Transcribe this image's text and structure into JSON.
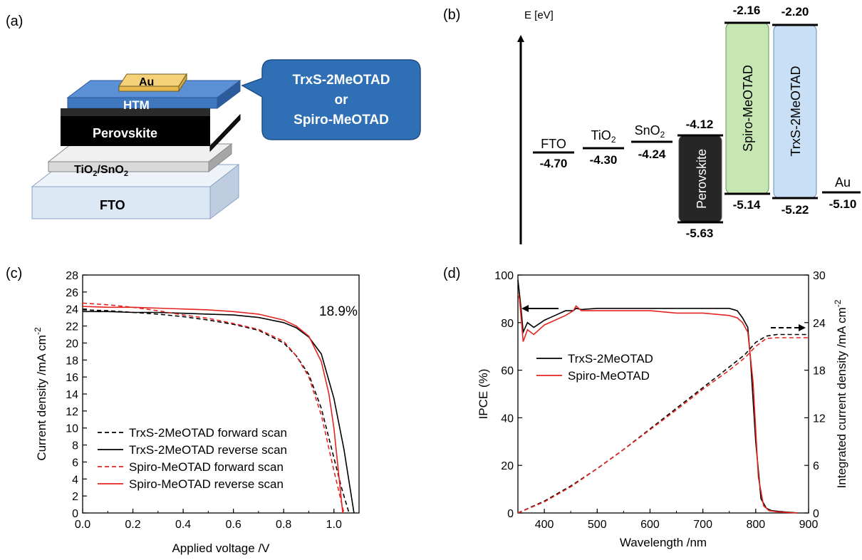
{
  "panels": {
    "a": {
      "label": "(a)",
      "layers": {
        "au": "Au",
        "htm": "HTM",
        "perovskite": "Perovskite",
        "etl_main": "TiO",
        "etl_sub": "2",
        "etl_sep": "/SnO",
        "etl_sub2": "2",
        "fto": "FTO"
      },
      "callout": {
        "line1": "TrxS-2MeOTAD",
        "line2": "or",
        "line3": "Spiro-MeOTAD"
      },
      "colors": {
        "htm": "#3f78bf",
        "au": "#f5d27a",
        "perovskite": "#000000",
        "etl": "#d9d9d9",
        "fto": "#dde8f5",
        "callout": "#2e6fb5"
      }
    },
    "b": {
      "label": "(b)",
      "axis_label": "E [eV]",
      "levels": [
        {
          "name": "FTO",
          "value": "-4.70"
        },
        {
          "name": "TiO",
          "sub": "2",
          "value": "-4.30"
        },
        {
          "name": "SnO",
          "sub": "2",
          "value": "-4.24"
        },
        {
          "name": "Au",
          "value": "-5.10"
        }
      ],
      "boxes": [
        {
          "name": "Perovskite",
          "top": "-4.12",
          "bottom": "-5.63",
          "color": "#262626"
        },
        {
          "name": "Spiro-MeOTAD",
          "top": "-2.16",
          "bottom": "-5.14",
          "color": "#c6e6b3"
        },
        {
          "name": "TrxS-2MeOTAD",
          "top": "-2.20",
          "bottom": "-5.22",
          "color": "#c9dff5"
        }
      ]
    }
  },
  "chart_data": [
    {
      "panel": "(c)",
      "type": "line",
      "xlabel": "Applied voltage /V",
      "ylabel": "Current density /mA cm",
      "ylabel_sup": "-2",
      "xlim": [
        0,
        1.1
      ],
      "ylim": [
        0,
        28
      ],
      "xticks": [
        "0.0",
        "0.2",
        "0.4",
        "0.6",
        "0.8",
        "1.0"
      ],
      "yticks": [
        "0",
        "2",
        "4",
        "6",
        "8",
        "10",
        "12",
        "14",
        "16",
        "18",
        "20",
        "22",
        "24",
        "26",
        "28"
      ],
      "annotation": "18.9%",
      "legend_position": "bottom-left",
      "series": [
        {
          "name": "TrxS-2MeOTAD forward scan",
          "color": "#000000",
          "dash": true,
          "x": [
            0,
            0.1,
            0.2,
            0.3,
            0.4,
            0.5,
            0.6,
            0.7,
            0.8,
            0.85,
            0.9,
            0.95,
            1.0,
            1.03,
            1.06
          ],
          "y": [
            23.9,
            23.8,
            23.6,
            23.4,
            23.1,
            22.7,
            22.2,
            21.5,
            20.0,
            18.5,
            16.3,
            12.3,
            6.5,
            3.0,
            0
          ]
        },
        {
          "name": "TrxS-2MeOTAD reverse scan",
          "color": "#000000",
          "dash": false,
          "x": [
            0,
            0.1,
            0.2,
            0.3,
            0.4,
            0.5,
            0.6,
            0.7,
            0.8,
            0.85,
            0.9,
            0.95,
            1.0,
            1.04,
            1.08
          ],
          "y": [
            23.7,
            23.7,
            23.6,
            23.6,
            23.5,
            23.4,
            23.3,
            23.0,
            22.4,
            21.8,
            20.7,
            18.7,
            13.5,
            7.5,
            0
          ]
        },
        {
          "name": "Spiro-MeOTAD forward scan",
          "color": "#e52421",
          "dash": true,
          "x": [
            0,
            0.1,
            0.2,
            0.3,
            0.4,
            0.5,
            0.6,
            0.7,
            0.8,
            0.85,
            0.9,
            0.95,
            1.0,
            1.04
          ],
          "y": [
            24.7,
            24.5,
            24.2,
            23.8,
            23.3,
            22.9,
            22.3,
            21.6,
            20.2,
            18.5,
            16.0,
            11.5,
            5.0,
            0
          ]
        },
        {
          "name": "Spiro-MeOTAD reverse scan",
          "color": "#e52421",
          "dash": false,
          "x": [
            0,
            0.1,
            0.2,
            0.3,
            0.4,
            0.5,
            0.6,
            0.7,
            0.8,
            0.85,
            0.9,
            0.95,
            0.98,
            1.0,
            1.035
          ],
          "y": [
            24.3,
            24.2,
            24.2,
            24.1,
            24.0,
            23.9,
            23.7,
            23.4,
            22.7,
            22.0,
            20.8,
            17.8,
            14.0,
            10.0,
            0
          ]
        }
      ]
    },
    {
      "panel": "(d)",
      "type": "line",
      "xlabel": "Wavelength /nm",
      "ylabel": "IPCE (%)",
      "ylabel_right": "Integrated current density /mA cm",
      "ylabel_right_sup": "-2",
      "xlim": [
        350,
        900
      ],
      "ylim": [
        0,
        100
      ],
      "ylim_right": [
        0,
        30
      ],
      "xticks": [
        "400",
        "500",
        "600",
        "700",
        "800",
        "900"
      ],
      "yticks": [
        "0",
        "20",
        "40",
        "60",
        "80",
        "100"
      ],
      "yticks_right": [
        "0",
        "6",
        "12",
        "18",
        "24",
        "30"
      ],
      "legend_position": "upper-left",
      "series": [
        {
          "name": "TrxS-2MeOTAD",
          "color": "#000000",
          "axis": "left",
          "x": [
            350,
            355,
            360,
            368,
            380,
            400,
            420,
            440,
            455,
            460,
            470,
            500,
            550,
            600,
            650,
            700,
            750,
            765,
            775,
            785,
            790,
            800,
            810,
            820,
            830,
            850,
            870,
            880
          ],
          "y": [
            98,
            88,
            76,
            80,
            78,
            81,
            83,
            85,
            85,
            86,
            85.5,
            86,
            86,
            86,
            86,
            86,
            86,
            85,
            82,
            78,
            65,
            30,
            6,
            2,
            1,
            0.5,
            0.2,
            0
          ]
        },
        {
          "name": "Spiro-MeOTAD",
          "color": "#e52421",
          "axis": "left",
          "x": [
            350,
            353,
            360,
            368,
            380,
            400,
            420,
            440,
            455,
            460,
            470,
            500,
            550,
            600,
            650,
            700,
            750,
            765,
            775,
            785,
            795,
            805,
            815,
            825,
            840,
            860,
            880
          ],
          "y": [
            92,
            90,
            72,
            77,
            75,
            79,
            81,
            83,
            85,
            87,
            85,
            85,
            85,
            85,
            84,
            84,
            83,
            82,
            80,
            76,
            55,
            15,
            3,
            1,
            0.5,
            0.2,
            0
          ]
        },
        {
          "name": "",
          "color": "#000000",
          "axis": "right",
          "dash": true,
          "x": [
            350,
            400,
            450,
            500,
            550,
            600,
            650,
            700,
            750,
            780,
            800,
            820,
            840,
            860,
            880,
            900
          ],
          "y": [
            0,
            1.5,
            3.4,
            5.6,
            8.0,
            10.6,
            13.2,
            15.8,
            18.4,
            20.0,
            21.5,
            22.3,
            22.5,
            22.5,
            22.5,
            22.5
          ]
        },
        {
          "name": "",
          "color": "#e52421",
          "axis": "right",
          "dash": true,
          "x": [
            350,
            400,
            450,
            500,
            550,
            600,
            650,
            700,
            750,
            780,
            800,
            820,
            840,
            860,
            880,
            900
          ],
          "y": [
            0,
            1.4,
            3.3,
            5.6,
            8.0,
            10.5,
            13.0,
            15.6,
            18.0,
            19.6,
            21.0,
            22.0,
            22.1,
            22.1,
            22.1,
            22.1
          ]
        }
      ]
    }
  ]
}
